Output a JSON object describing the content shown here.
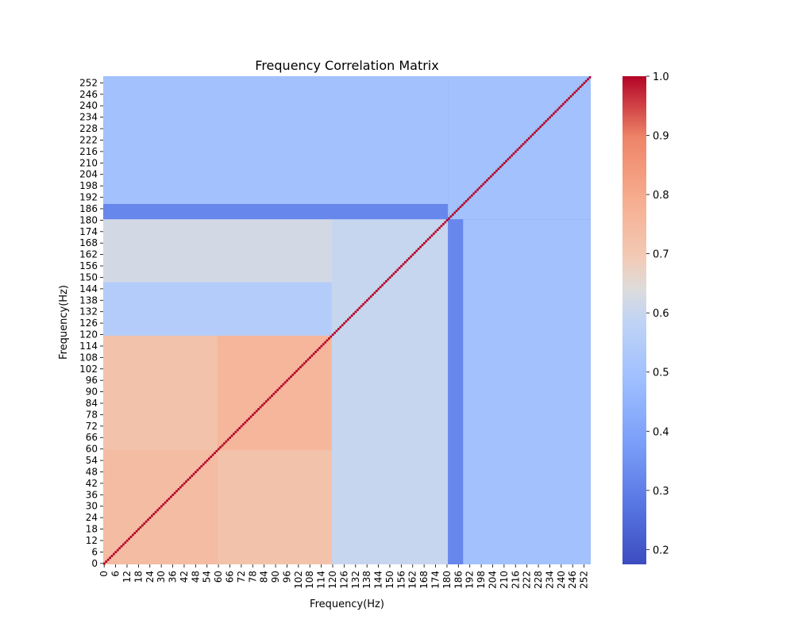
{
  "chart_data": {
    "type": "heatmap",
    "title": "Frequency Correlation Matrix",
    "xlabel": "Frequency(Hz)",
    "ylabel": "Frequency(Hz)",
    "n": 256,
    "x_ticks": [
      0,
      6,
      12,
      18,
      24,
      30,
      36,
      42,
      48,
      54,
      60,
      66,
      72,
      78,
      84,
      90,
      96,
      102,
      108,
      114,
      120,
      126,
      132,
      138,
      144,
      150,
      156,
      162,
      168,
      174,
      180,
      186,
      192,
      198,
      204,
      210,
      216,
      222,
      228,
      234,
      240,
      246,
      252
    ],
    "y_ticks": [
      0,
      6,
      12,
      18,
      24,
      30,
      36,
      42,
      48,
      54,
      60,
      66,
      72,
      78,
      84,
      90,
      96,
      102,
      108,
      114,
      120,
      126,
      132,
      138,
      144,
      150,
      156,
      162,
      168,
      174,
      180,
      186,
      192,
      198,
      204,
      210,
      216,
      222,
      228,
      234,
      240,
      246,
      252
    ],
    "colormap": "coolwarm",
    "colorbar": {
      "min": 0.175,
      "max": 1.0,
      "ticks": [
        0.2,
        0.3,
        0.4,
        0.5,
        0.6,
        0.7,
        0.8,
        0.9,
        1.0
      ]
    },
    "diagonal_value": 1.0,
    "regions": [
      {
        "rows": [
          0,
          120
        ],
        "cols": [
          0,
          120
        ],
        "value": 0.72
      },
      {
        "rows": [
          60,
          120
        ],
        "cols": [
          60,
          120
        ],
        "value": 0.76
      },
      {
        "rows": [
          0,
          60
        ],
        "cols": [
          0,
          60
        ],
        "value": 0.74
      },
      {
        "rows": [
          120,
          181
        ],
        "cols": [
          0,
          181
        ],
        "value": 0.62
      },
      {
        "rows": [
          0,
          181
        ],
        "cols": [
          120,
          181
        ],
        "value": 0.6
      },
      {
        "rows": [
          120,
          148
        ],
        "cols": [
          0,
          120
        ],
        "value": 0.55
      },
      {
        "rows": [
          0,
          256
        ],
        "cols": [
          181,
          256
        ],
        "value": 0.5
      },
      {
        "rows": [
          181,
          256
        ],
        "cols": [
          0,
          256
        ],
        "value": 0.5
      },
      {
        "rows": [
          181,
          189
        ],
        "cols": [
          0,
          256
        ],
        "value": 0.32
      },
      {
        "rows": [
          0,
          256
        ],
        "cols": [
          181,
          189
        ],
        "value": 0.32
      },
      {
        "rows": [
          181,
          256
        ],
        "cols": [
          181,
          256
        ],
        "value": 0.5
      }
    ]
  }
}
